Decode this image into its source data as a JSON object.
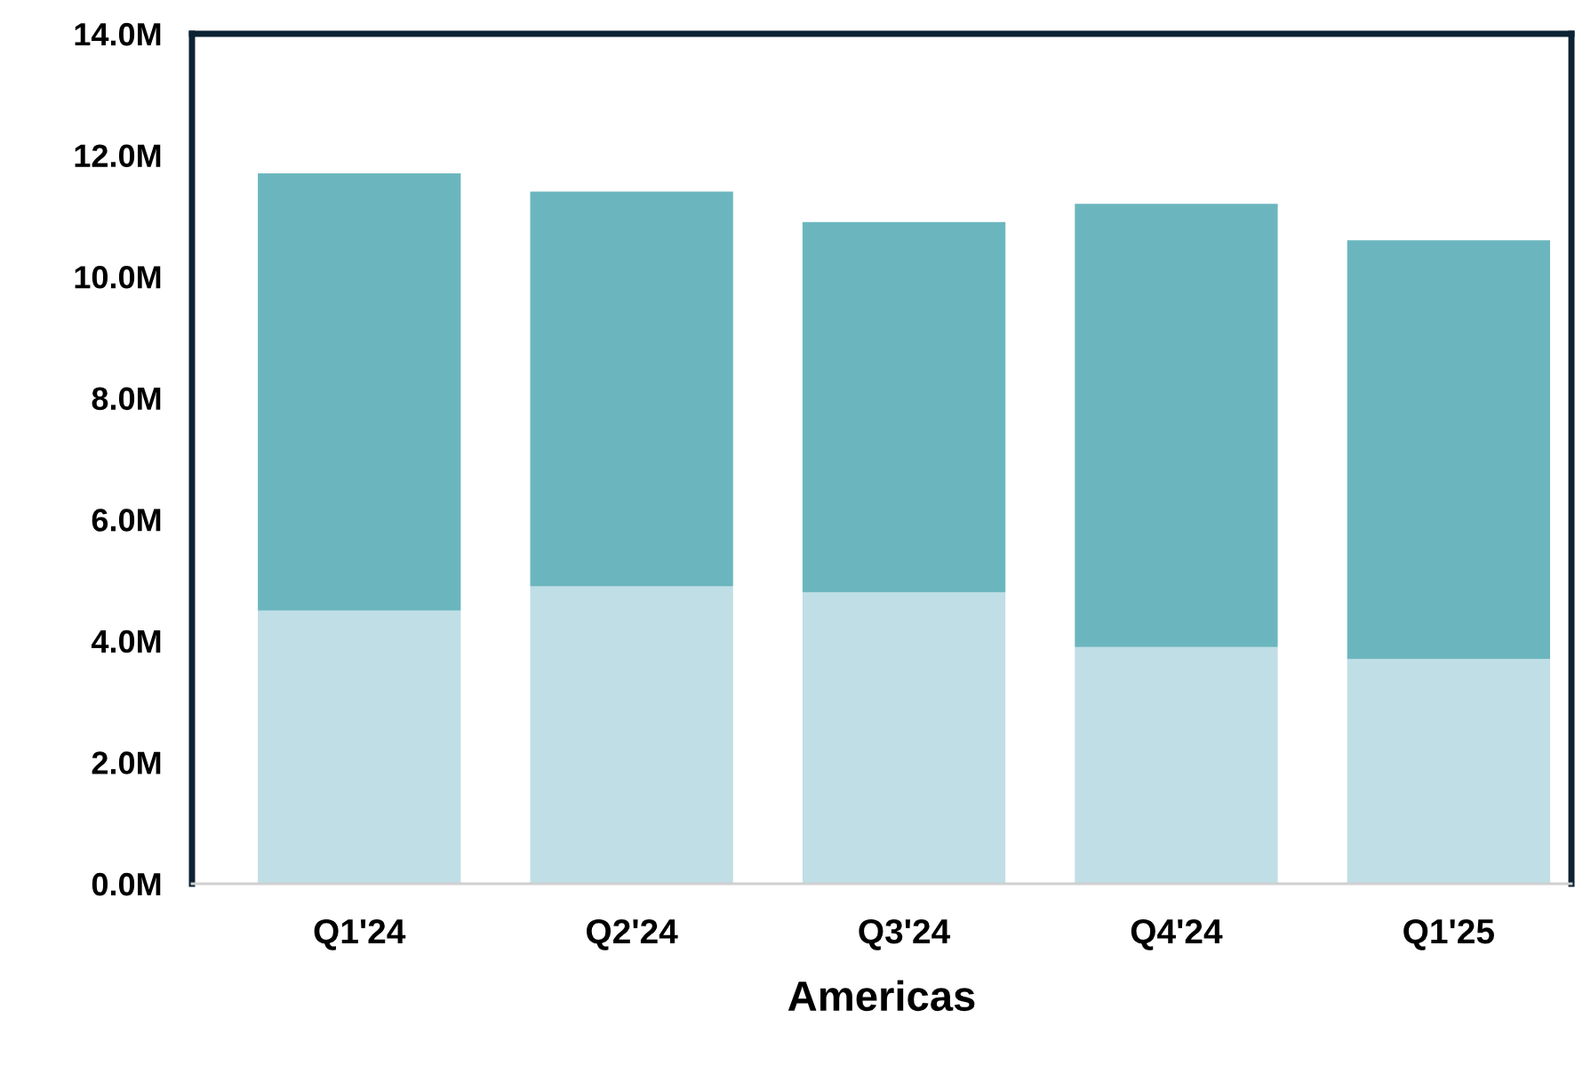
{
  "chart_data": {
    "type": "bar",
    "stacked": true,
    "xlabel": "Americas",
    "categories": [
      "Q1'24",
      "Q2'24",
      "Q3'24",
      "Q4'24",
      "Q1'25"
    ],
    "series": [
      {
        "color": "#c0dee6",
        "values": [
          4.5,
          4.9,
          4.8,
          3.9,
          3.7
        ]
      },
      {
        "color": "#6bb6be",
        "values": [
          7.2,
          6.5,
          6.1,
          7.3,
          6.9
        ]
      }
    ],
    "ylim": [
      0,
      14
    ],
    "yticks": [
      {
        "value": 0,
        "label": "0.0M"
      },
      {
        "value": 2,
        "label": "2.0M"
      },
      {
        "value": 4,
        "label": "4.0M"
      },
      {
        "value": 6,
        "label": "6.0M"
      },
      {
        "value": 8,
        "label": "8.0M"
      },
      {
        "value": 10,
        "label": "10.0M"
      },
      {
        "value": 12,
        "label": "12.0M"
      },
      {
        "value": 14,
        "label": "14.0M"
      }
    ],
    "grid": false
  }
}
